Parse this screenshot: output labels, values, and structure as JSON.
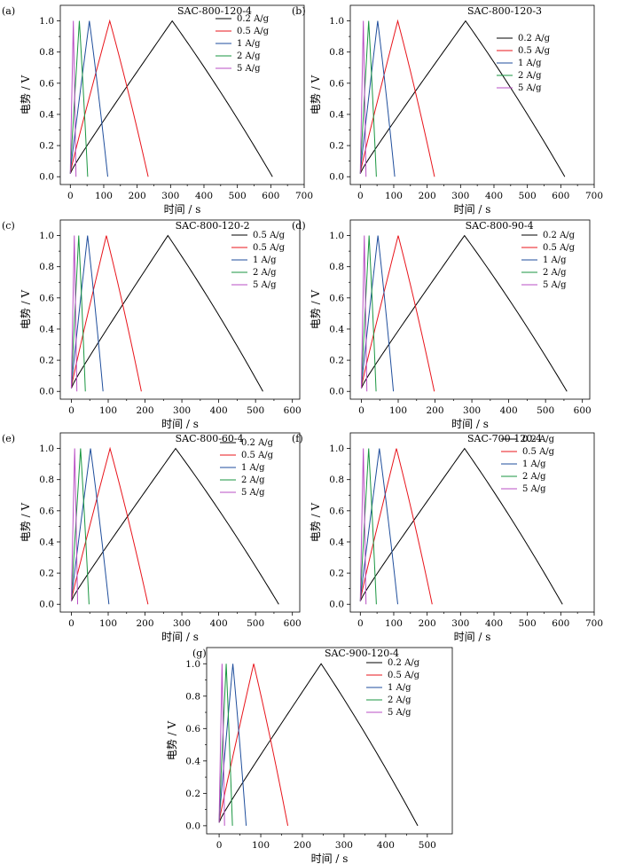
{
  "chart_data": [
    {
      "type": "line",
      "panel_label": "(a)",
      "title": "SAC-800-120-4",
      "xlabel": "时间 / s",
      "ylabel": "电势 / V",
      "xlim": [
        -30,
        700
      ],
      "ylim": [
        -0.05,
        1.1
      ],
      "xticks": [
        0,
        100,
        200,
        300,
        400,
        500,
        600,
        700
      ],
      "yticks": [
        0.0,
        0.2,
        0.4,
        0.6,
        0.8,
        1.0
      ],
      "legend_position": "top-right",
      "series": [
        {
          "name": "0.2 A/g",
          "color": "#000000",
          "charge_time": 305,
          "discharge_end": 605
        },
        {
          "name": "0.5 A/g",
          "color": "#e8141b",
          "charge_time": 118,
          "discharge_end": 233
        },
        {
          "name": "1 A/g",
          "color": "#1f4e9c",
          "charge_time": 57,
          "discharge_end": 112
        },
        {
          "name": "2 A/g",
          "color": "#1a9641",
          "charge_time": 27,
          "discharge_end": 52
        },
        {
          "name": "5 A/g",
          "color": "#b94fc4",
          "charge_time": 9,
          "discharge_end": 17
        }
      ]
    },
    {
      "type": "line",
      "panel_label": "(b)",
      "title": "SAC-800-120-3",
      "xlabel": "时间 / s",
      "ylabel": "电势 / V",
      "xlim": [
        -30,
        700
      ],
      "ylim": [
        -0.05,
        1.1
      ],
      "xticks": [
        0,
        100,
        200,
        300,
        400,
        500,
        600,
        700
      ],
      "yticks": [
        0.0,
        0.2,
        0.4,
        0.6,
        0.8,
        1.0
      ],
      "legend_position": "top-right",
      "series": [
        {
          "name": "0.2 A/g",
          "color": "#000000",
          "charge_time": 315,
          "discharge_end": 612
        },
        {
          "name": "0.5 A/g",
          "color": "#e8141b",
          "charge_time": 112,
          "discharge_end": 222
        },
        {
          "name": "1 A/g",
          "color": "#1f4e9c",
          "charge_time": 52,
          "discharge_end": 103
        },
        {
          "name": "2 A/g",
          "color": "#1a9641",
          "charge_time": 25,
          "discharge_end": 48
        },
        {
          "name": "5 A/g",
          "color": "#b94fc4",
          "charge_time": 9,
          "discharge_end": 17
        }
      ]
    },
    {
      "type": "line",
      "panel_label": "(c)",
      "title": "SAC-800-120-2",
      "xlabel": "时间 / s",
      "ylabel": "电势 / V",
      "xlim": [
        -30,
        620
      ],
      "ylim": [
        -0.05,
        1.1
      ],
      "xticks": [
        0,
        100,
        200,
        300,
        400,
        500,
        600
      ],
      "yticks": [
        0.0,
        0.2,
        0.4,
        0.6,
        0.8,
        1.0
      ],
      "legend_position": "top-right",
      "series": [
        {
          "name": "0.5 A/g",
          "color": "#000000",
          "charge_time": 262,
          "discharge_end": 520
        },
        {
          "name": "0.5 A/g",
          "color": "#e8141b",
          "charge_time": 95,
          "discharge_end": 190
        },
        {
          "name": "1 A/g",
          "color": "#1f4e9c",
          "charge_time": 44,
          "discharge_end": 86
        },
        {
          "name": "2 A/g",
          "color": "#1a9641",
          "charge_time": 20,
          "discharge_end": 38
        },
        {
          "name": "5 A/g",
          "color": "#b94fc4",
          "charge_time": 8,
          "discharge_end": 15
        }
      ]
    },
    {
      "type": "line",
      "panel_label": "(d)",
      "title": "SAC-800-90-4",
      "xlabel": "时间 / s",
      "ylabel": "电势 / V",
      "xlim": [
        -30,
        620
      ],
      "ylim": [
        -0.05,
        1.1
      ],
      "xticks": [
        0,
        100,
        200,
        300,
        400,
        500,
        600
      ],
      "yticks": [
        0.0,
        0.2,
        0.4,
        0.6,
        0.8,
        1.0
      ],
      "legend_position": "top-right",
      "series": [
        {
          "name": "0.2 A/g",
          "color": "#000000",
          "charge_time": 280,
          "discharge_end": 558
        },
        {
          "name": "0.5 A/g",
          "color": "#e8141b",
          "charge_time": 100,
          "discharge_end": 198
        },
        {
          "name": "1 A/g",
          "color": "#1f4e9c",
          "charge_time": 45,
          "discharge_end": 87
        },
        {
          "name": "2 A/g",
          "color": "#1a9641",
          "charge_time": 21,
          "discharge_end": 40
        },
        {
          "name": "5 A/g",
          "color": "#b94fc4",
          "charge_time": 8,
          "discharge_end": 15
        }
      ]
    },
    {
      "type": "line",
      "panel_label": "(e)",
      "title": "SAC-800-60-4",
      "xlabel": "时间 / s",
      "ylabel": "电势 / V",
      "xlim": [
        -30,
        620
      ],
      "ylim": [
        -0.05,
        1.1
      ],
      "xticks": [
        0,
        100,
        200,
        300,
        400,
        500,
        600
      ],
      "yticks": [
        0.0,
        0.2,
        0.4,
        0.6,
        0.8,
        1.0
      ],
      "legend_position": "top-right",
      "series": [
        {
          "name": "0.2 A/g",
          "color": "#000000",
          "charge_time": 283,
          "discharge_end": 563
        },
        {
          "name": "0.5 A/g",
          "color": "#e8141b",
          "charge_time": 105,
          "discharge_end": 208
        },
        {
          "name": "1 A/g",
          "color": "#1f4e9c",
          "charge_time": 52,
          "discharge_end": 102
        },
        {
          "name": "2 A/g",
          "color": "#1a9641",
          "charge_time": 25,
          "discharge_end": 48
        },
        {
          "name": "5 A/g",
          "color": "#b94fc4",
          "charge_time": 9,
          "discharge_end": 17
        }
      ]
    },
    {
      "type": "line",
      "panel_label": "(f)",
      "title": "SAC-700-120-4",
      "xlabel": "时间 / s",
      "ylabel": "电势 / V",
      "xlim": [
        -30,
        700
      ],
      "ylim": [
        -0.05,
        1.1
      ],
      "xticks": [
        0,
        100,
        200,
        300,
        400,
        500,
        600,
        700
      ],
      "yticks": [
        0.0,
        0.2,
        0.4,
        0.6,
        0.8,
        1.0
      ],
      "legend_position": "top-right",
      "series": [
        {
          "name": "0.2 A/g",
          "color": "#000000",
          "charge_time": 312,
          "discharge_end": 605
        },
        {
          "name": "0.5 A/g",
          "color": "#e8141b",
          "charge_time": 108,
          "discharge_end": 215
        },
        {
          "name": "1 A/g",
          "color": "#1f4e9c",
          "charge_time": 57,
          "discharge_end": 112
        },
        {
          "name": "2 A/g",
          "color": "#1a9641",
          "charge_time": 25,
          "discharge_end": 48
        },
        {
          "name": "5 A/g",
          "color": "#b94fc4",
          "charge_time": 9,
          "discharge_end": 17
        }
      ]
    },
    {
      "type": "line",
      "panel_label": "(g)",
      "title": "SAC-900-120-4",
      "xlabel": "时间 / s",
      "ylabel": "电势 / V",
      "xlim": [
        -30,
        560
      ],
      "ylim": [
        -0.05,
        1.1
      ],
      "xticks": [
        0,
        100,
        200,
        300,
        400,
        500
      ],
      "yticks": [
        0.0,
        0.2,
        0.4,
        0.6,
        0.8,
        1.0
      ],
      "legend_position": "top-right",
      "series": [
        {
          "name": "0.2 A/g",
          "color": "#000000",
          "charge_time": 245,
          "discharge_end": 477
        },
        {
          "name": "0.5 A/g",
          "color": "#e8141b",
          "charge_time": 83,
          "discharge_end": 165
        },
        {
          "name": "1 A/g",
          "color": "#1f4e9c",
          "charge_time": 33,
          "discharge_end": 65
        },
        {
          "name": "2 A/g",
          "color": "#1a9641",
          "charge_time": 17,
          "discharge_end": 32
        },
        {
          "name": "5 A/g",
          "color": "#b94fc4",
          "charge_time": 7,
          "discharge_end": 13
        }
      ]
    }
  ]
}
